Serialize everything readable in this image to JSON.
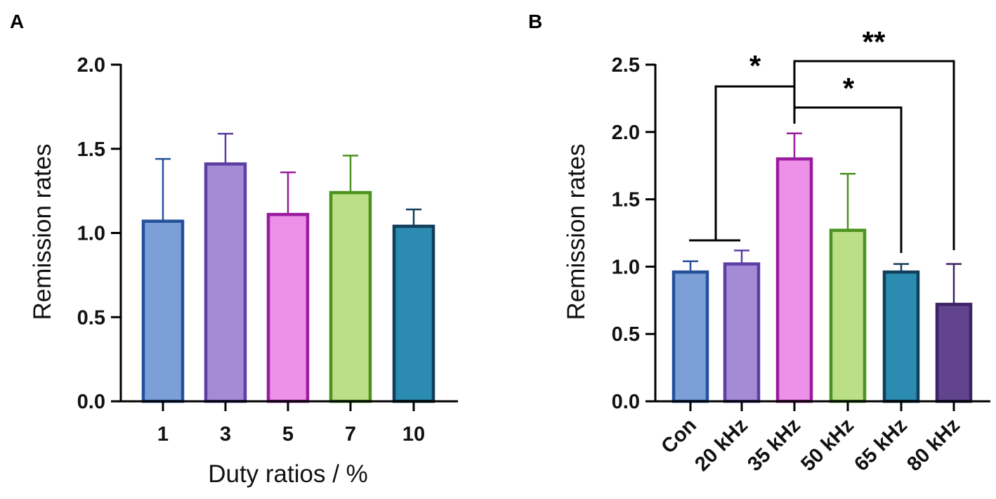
{
  "chart_data": [
    {
      "panel": "A",
      "type": "bar",
      "title": "",
      "xlabel": "Duty ratios / %",
      "ylabel": "Remission rates",
      "ylim": [
        0,
        2.0
      ],
      "yticks": [
        "0.0",
        "0.5",
        "1.0",
        "1.5",
        "2.0"
      ],
      "yticks_values": [
        0,
        0.5,
        1.0,
        1.5,
        2.0
      ],
      "categories": [
        "1",
        "3",
        "5",
        "7",
        "10"
      ],
      "values": [
        1.07,
        1.41,
        1.11,
        1.24,
        1.04
      ],
      "errors": [
        0.37,
        0.18,
        0.25,
        0.22,
        0.1
      ],
      "fill_colors": [
        "#7b9fd6",
        "#a38bd6",
        "#ec90e8",
        "#badf86",
        "#2b8bb0"
      ],
      "edge_colors": [
        "#24509c",
        "#5d3ea3",
        "#9a1c9e",
        "#4c9220",
        "#123e5a"
      ]
    },
    {
      "panel": "B",
      "type": "bar",
      "title": "",
      "xlabel": "",
      "ylabel": "Remission  rates",
      "ylim": [
        0,
        2.5
      ],
      "yticks": [
        "0.0",
        "0.5",
        "1.0",
        "1.5",
        "2.0",
        "2.5"
      ],
      "yticks_values": [
        0,
        0.5,
        1.0,
        1.5,
        2.0,
        2.5
      ],
      "categories": [
        "Con",
        "20 kHz",
        "35 kHz",
        "50 kHz",
        "65 kHz",
        "80 kHz"
      ],
      "values": [
        0.96,
        1.02,
        1.8,
        1.27,
        0.96,
        0.72
      ],
      "errors": [
        0.08,
        0.1,
        0.19,
        0.42,
        0.06,
        0.3
      ],
      "fill_colors": [
        "#7b9fd6",
        "#a38bd6",
        "#ec90e8",
        "#badf86",
        "#2b8bb0",
        "#62448e"
      ],
      "edge_colors": [
        "#24509c",
        "#5d3ea3",
        "#9a1c9e",
        "#4c9220",
        "#123e5a",
        "#3e2266"
      ],
      "significance": [
        {
          "label": "*",
          "from": [
            "Con",
            "20 kHz"
          ],
          "to": "35 kHz"
        },
        {
          "label": "*",
          "from": [
            "35 kHz"
          ],
          "to": "65 kHz"
        },
        {
          "label": "**",
          "from": [
            "35 kHz"
          ],
          "to": "80 kHz"
        }
      ]
    }
  ]
}
